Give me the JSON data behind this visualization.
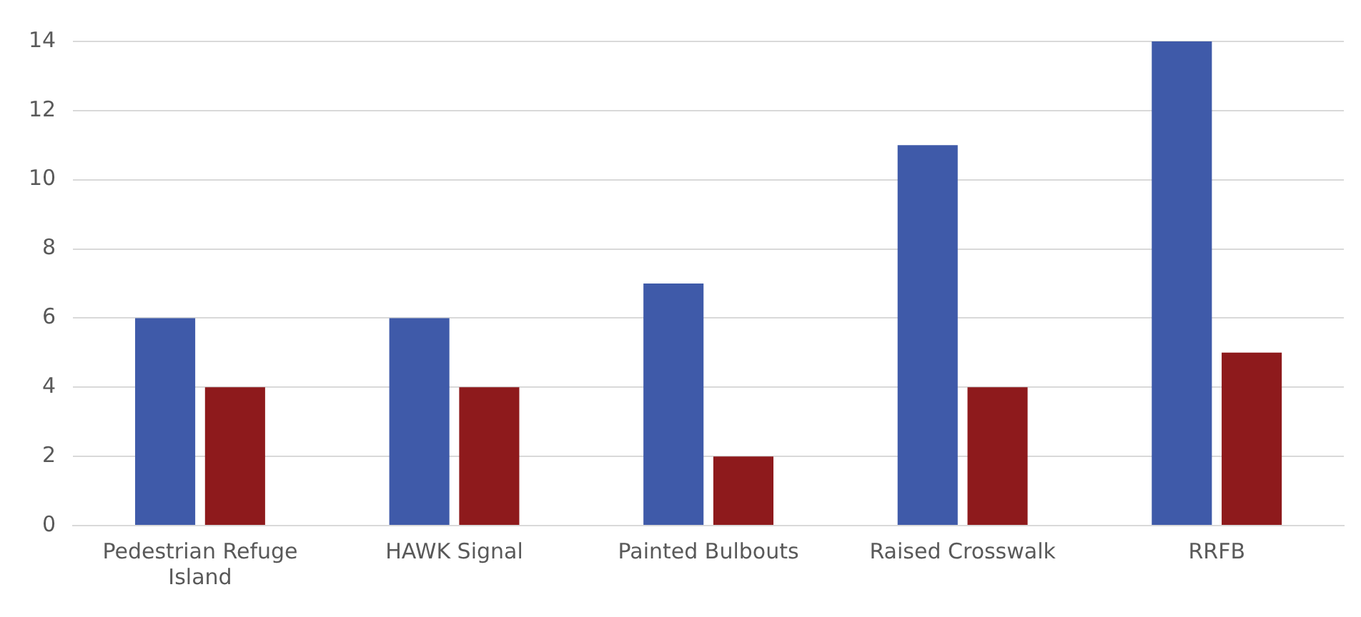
{
  "chart_data": {
    "type": "bar",
    "categories": [
      "Pedestrian Refuge Island",
      "HAWK Signal",
      "Painted Bulbouts",
      "Raised Crosswalk",
      "RRFB"
    ],
    "series": [
      {
        "color": "#3f5aa9",
        "values": [
          6,
          6,
          7,
          11,
          14
        ]
      },
      {
        "color": "#8e1a1c",
        "values": [
          4,
          4,
          2,
          4,
          5
        ]
      }
    ],
    "ylim": [
      0,
      14
    ],
    "yticks": [
      0,
      2,
      4,
      6,
      8,
      10,
      12,
      14
    ],
    "grid": "y",
    "legend": false
  }
}
